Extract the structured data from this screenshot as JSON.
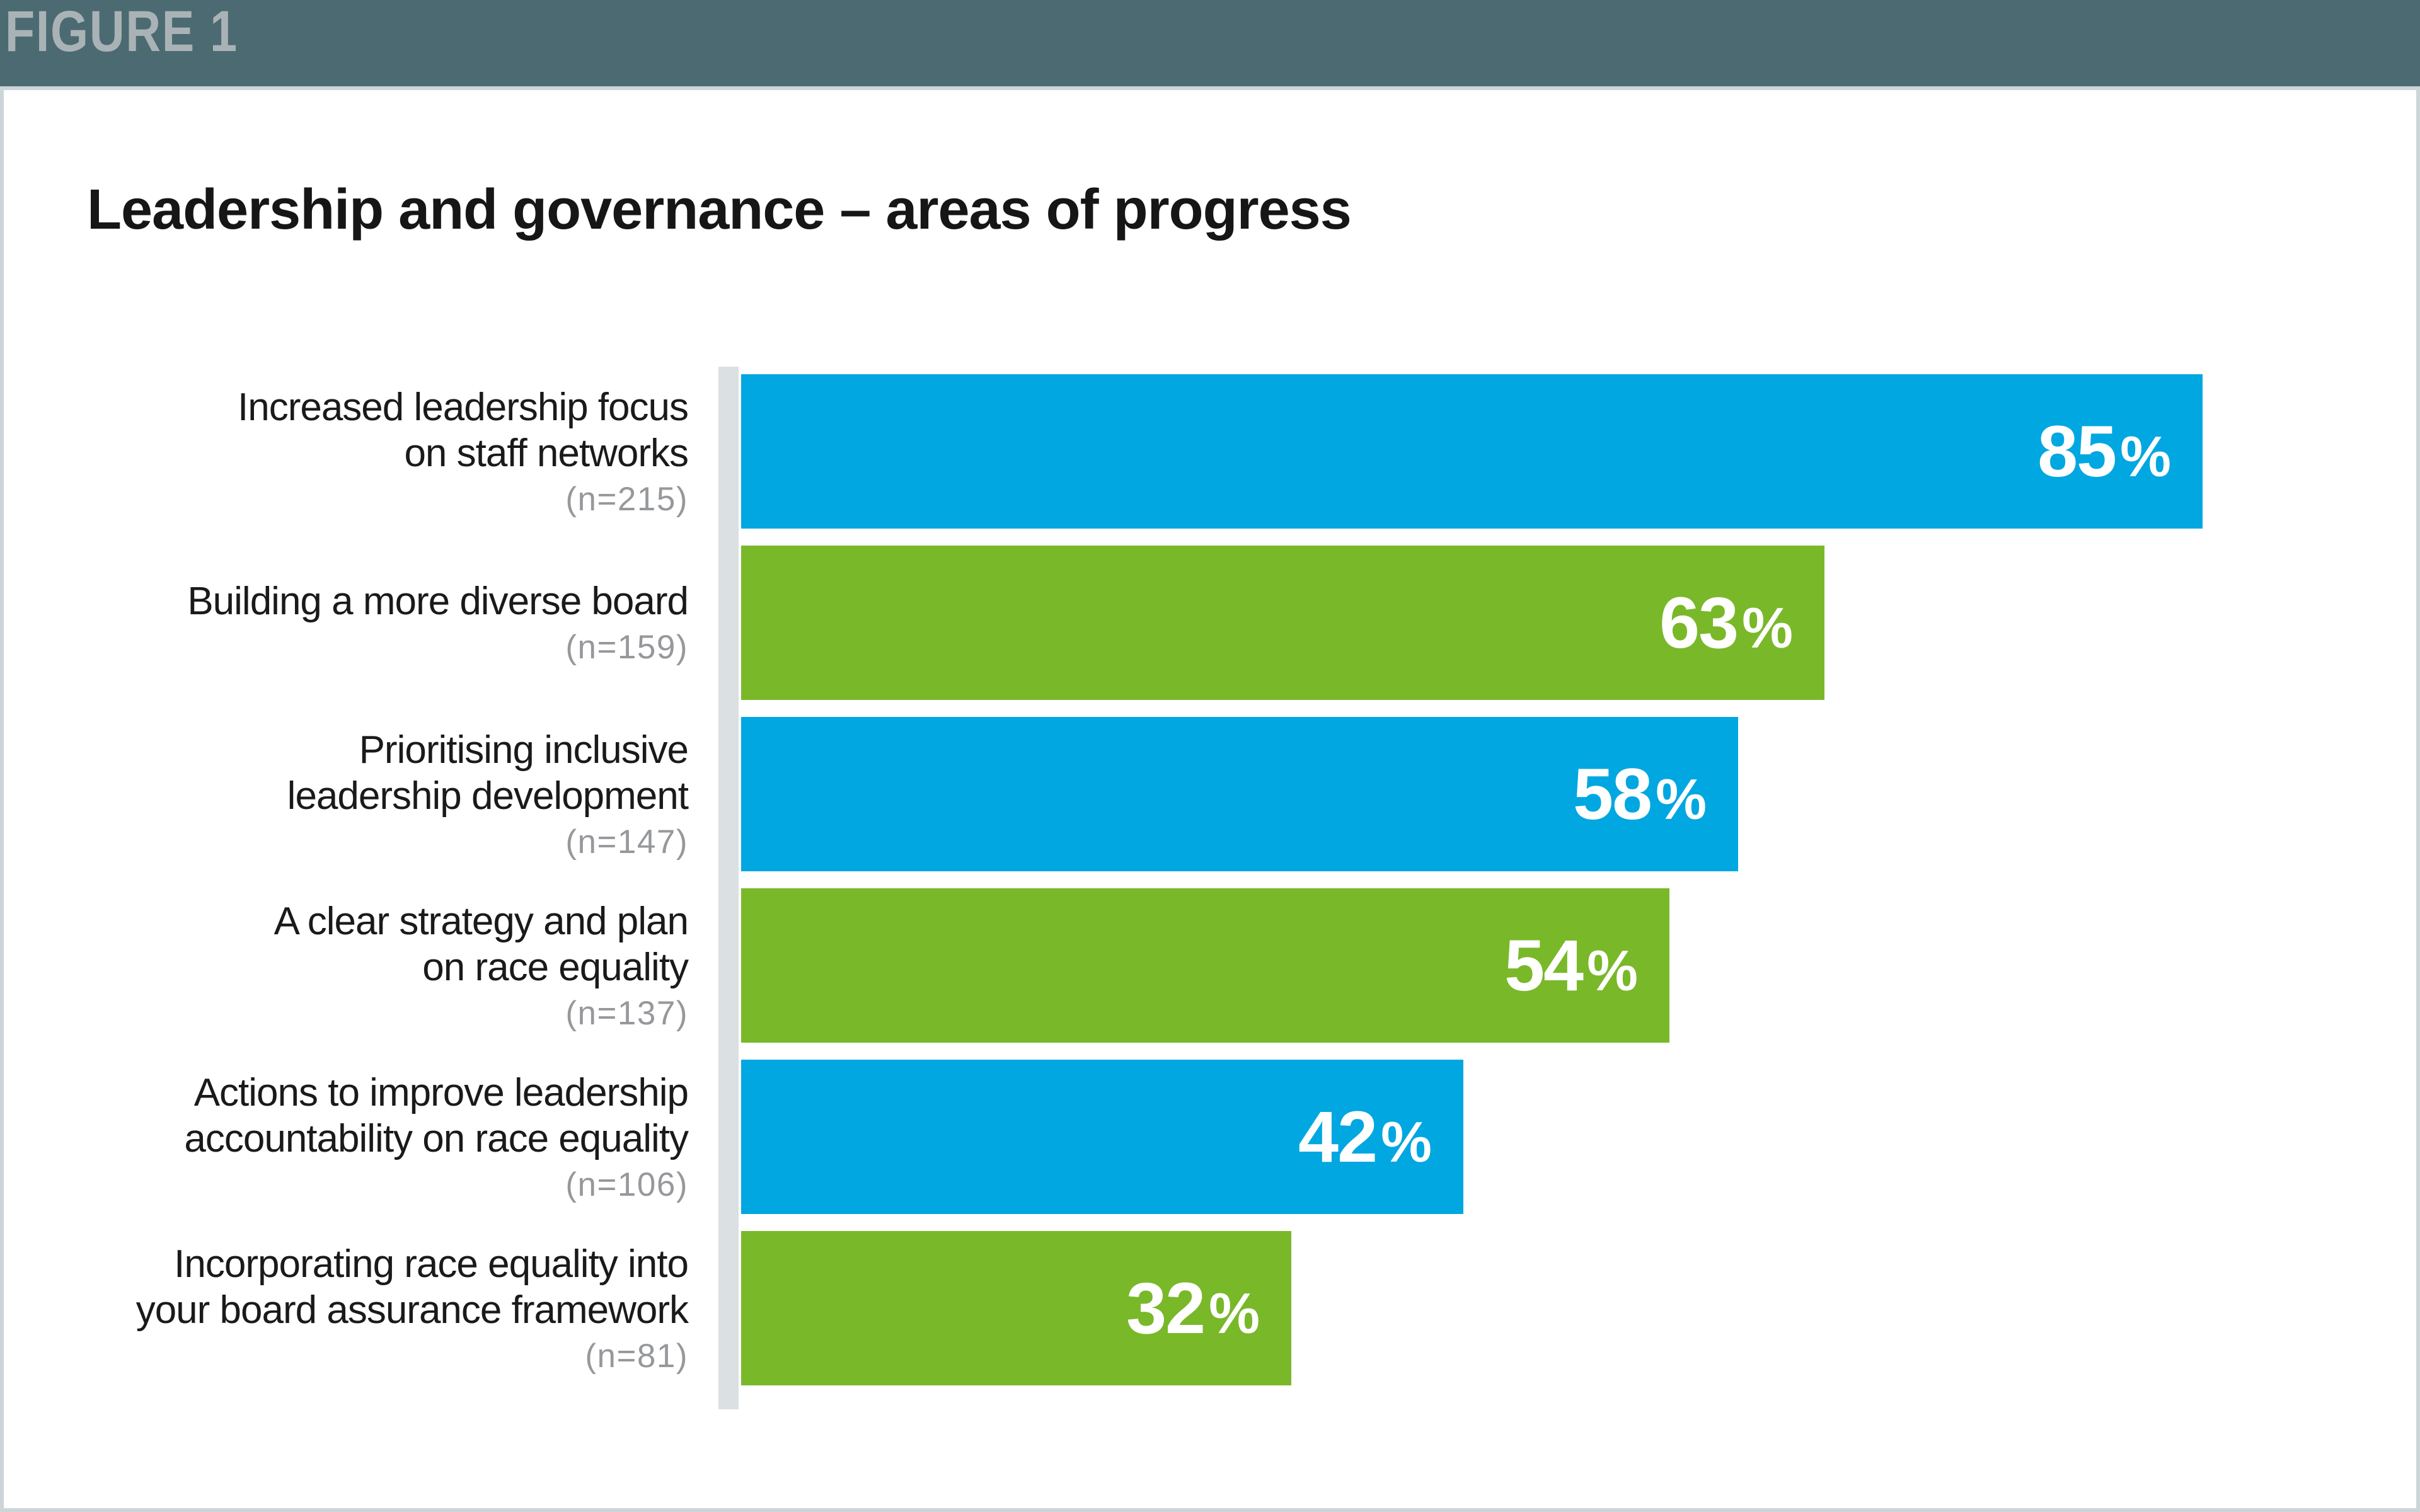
{
  "figure_label": "FIGURE 1",
  "colors": {
    "header_bg": "#4C6A72",
    "figure_label_color": "#A9B3B6",
    "panel_border": "#CCD5D8",
    "axis_line": "#DBE0E2",
    "bar_blue": "#00A7E1",
    "bar_green": "#79B829",
    "label_text": "#1A1A1A",
    "sample_size_gray": "#96989B",
    "value_text": "#FFFFFF"
  },
  "chart_data": {
    "type": "bar",
    "orientation": "horizontal",
    "title": "Leadership and governance – areas of progress",
    "value_suffix": "%",
    "xlim": [
      0,
      100
    ],
    "grid": false,
    "legend": "none",
    "value_labels_position": "inside-end",
    "categories": [
      "Increased leadership focus on staff networks",
      "Building a more diverse board",
      "Prioritising inclusive leadership development",
      "A clear strategy and plan on race equality",
      "Actions to improve leadership accountability on race equality",
      "Incorporating race equality into your board assurance framework"
    ],
    "values": [
      85,
      63,
      58,
      54,
      42,
      32
    ],
    "sample_sizes": [
      215,
      159,
      147,
      137,
      106,
      81
    ],
    "rows": [
      {
        "label_lines": [
          "Increased leadership focus",
          "on staff networks"
        ],
        "n": "(n=215)",
        "value": 85,
        "color": "blue"
      },
      {
        "label_lines": [
          "Building a more diverse board"
        ],
        "n": "(n=159)",
        "value": 63,
        "color": "green"
      },
      {
        "label_lines": [
          "Prioritising inclusive",
          "leadership development"
        ],
        "n": "(n=147)",
        "value": 58,
        "color": "blue"
      },
      {
        "label_lines": [
          "A clear strategy and plan",
          "on race equality"
        ],
        "n": "(n=137)",
        "value": 54,
        "color": "green"
      },
      {
        "label_lines": [
          "Actions to improve leadership",
          "accountability on race equality"
        ],
        "n": "(n=106)",
        "value": 42,
        "color": "blue"
      },
      {
        "label_lines": [
          "Incorporating race equality into",
          "your board assurance framework"
        ],
        "n": "(n=81)",
        "value": 32,
        "color": "green"
      }
    ]
  }
}
